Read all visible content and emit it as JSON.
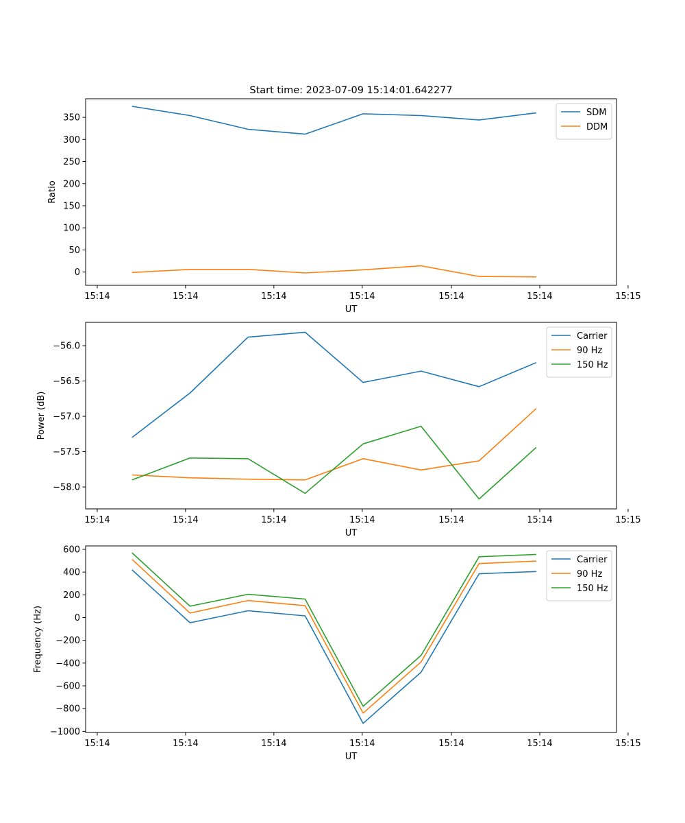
{
  "figure_title": "Start time: 2023-07-09 15:14:01.642277",
  "colors": {
    "blue": "#1f77b4",
    "orange": "#ff7f0e",
    "green": "#2ca02c"
  },
  "chart_data": [
    {
      "type": "line",
      "title": "Start time: 2023-07-09 15:14:01.642277",
      "xlabel": "UT",
      "ylabel": "Ratio",
      "x": [
        0.52,
        1.17,
        1.82,
        2.46,
        3.11,
        3.76,
        4.41,
        5.05
      ],
      "xlim": [
        0,
        5.95
      ],
      "xticks": [
        0.13,
        1.12,
        2.11,
        3.1,
        4.1,
        5.09,
        6.08
      ],
      "xtick_labels": [
        "15:14",
        "15:14",
        "15:14",
        "15:14",
        "15:14",
        "15:14",
        "15:15"
      ],
      "ylim": [
        -30,
        392
      ],
      "yticks": [
        0,
        50,
        100,
        150,
        200,
        250,
        300,
        350
      ],
      "ytick_labels": [
        "0",
        "50",
        "100",
        "150",
        "200",
        "250",
        "300",
        "350"
      ],
      "legend_loc": "top-right",
      "series": [
        {
          "name": "SDM",
          "color": "#1f77b4",
          "values": [
            375,
            354,
            323,
            312,
            358,
            354,
            344,
            360
          ]
        },
        {
          "name": "DDM",
          "color": "#ff7f0e",
          "values": [
            -1,
            6,
            6,
            -2,
            5,
            14,
            -10,
            -11
          ]
        }
      ]
    },
    {
      "type": "line",
      "xlabel": "UT",
      "ylabel": "Power (dB)",
      "x": [
        0.52,
        1.17,
        1.82,
        2.46,
        3.11,
        3.76,
        4.41,
        5.05
      ],
      "xlim": [
        0,
        5.95
      ],
      "xticks": [
        0.13,
        1.12,
        2.11,
        3.1,
        4.1,
        5.09,
        6.08
      ],
      "xtick_labels": [
        "15:14",
        "15:14",
        "15:14",
        "15:14",
        "15:14",
        "15:14",
        "15:15"
      ],
      "ylim": [
        -58.31,
        -55.67
      ],
      "yticks": [
        -58.0,
        -57.5,
        -57.0,
        -56.5,
        -56.0
      ],
      "ytick_labels": [
        "−58.0",
        "−57.5",
        "−57.0",
        "−56.5",
        "−56.0"
      ],
      "legend_loc": "top-right",
      "series": [
        {
          "name": "Carrier",
          "color": "#1f77b4",
          "values": [
            -57.3,
            -56.67,
            -55.88,
            -55.81,
            -56.52,
            -56.36,
            -56.58,
            -56.24
          ]
        },
        {
          "name": "90 Hz",
          "color": "#ff7f0e",
          "values": [
            -57.83,
            -57.87,
            -57.89,
            -57.9,
            -57.6,
            -57.76,
            -57.63,
            -56.89
          ]
        },
        {
          "name": "150 Hz",
          "color": "#2ca02c",
          "values": [
            -57.9,
            -57.59,
            -57.6,
            -58.09,
            -57.39,
            -57.14,
            -58.17,
            -57.44
          ]
        }
      ]
    },
    {
      "type": "line",
      "xlabel": "UT",
      "ylabel": "Frequency (Hz)",
      "x": [
        0.52,
        1.17,
        1.82,
        2.46,
        3.11,
        3.76,
        4.41,
        5.05
      ],
      "xlim": [
        0,
        5.95
      ],
      "xticks": [
        0.13,
        1.12,
        2.11,
        3.1,
        4.1,
        5.09,
        6.08
      ],
      "xtick_labels": [
        "15:14",
        "15:14",
        "15:14",
        "15:14",
        "15:14",
        "15:14",
        "15:15"
      ],
      "ylim": [
        -1010,
        630
      ],
      "yticks": [
        -1000,
        -800,
        -600,
        -400,
        -200,
        0,
        200,
        400,
        600
      ],
      "ytick_labels": [
        "−1000",
        "−800",
        "−600",
        "−400",
        "−200",
        "0",
        "200",
        "400",
        "600"
      ],
      "legend_loc": "top-right",
      "series": [
        {
          "name": "Carrier",
          "color": "#1f77b4",
          "values": [
            420,
            -45,
            60,
            15,
            -930,
            -480,
            385,
            405
          ]
        },
        {
          "name": "90 Hz",
          "color": "#ff7f0e",
          "values": [
            512,
            40,
            150,
            105,
            -840,
            -390,
            475,
            497
          ]
        },
        {
          "name": "150 Hz",
          "color": "#2ca02c",
          "values": [
            570,
            100,
            205,
            163,
            -780,
            -332,
            535,
            555
          ]
        }
      ]
    }
  ]
}
